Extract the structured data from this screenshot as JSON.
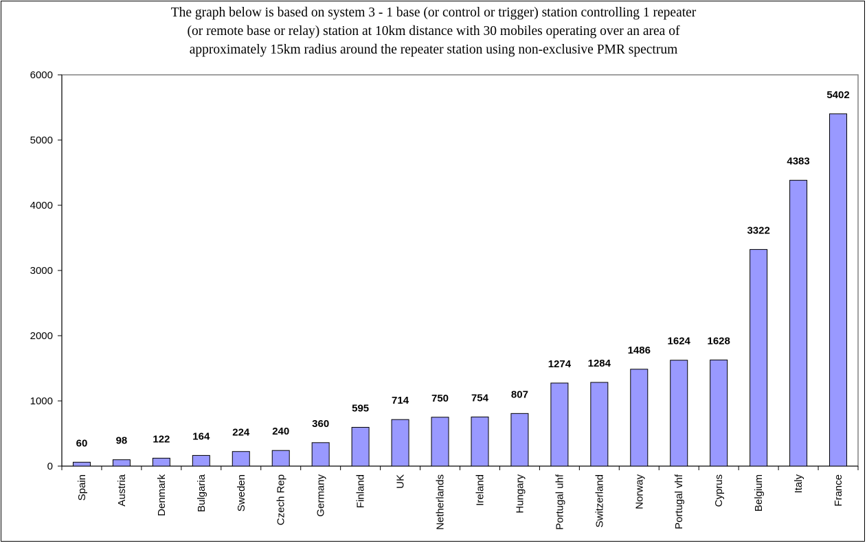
{
  "chart_data": {
    "type": "bar",
    "title_lines": [
      "The graph below is based on system 3 - 1 base (or control or trigger) station controlling 1 repeater",
      "(or remote base or relay) station at 10km distance with 30 mobiles operating over an area of",
      "approximately 15km radius around the repeater station using non-exclusive PMR spectrum"
    ],
    "categories": [
      "Spain",
      "Austria",
      "Denmark",
      "Bulgaria",
      "Sweden",
      "Czech Rep",
      "Germany",
      "Finland",
      "UK",
      "Netherlands",
      "Ireland",
      "Hungary",
      "Portugal uhf",
      "Switzerland",
      "Norway",
      "Portugal vhf",
      "Cyprus",
      "Belgium",
      "Italy",
      "France"
    ],
    "values": [
      60,
      98,
      122,
      164,
      224,
      240,
      360,
      595,
      714,
      750,
      754,
      807,
      1274,
      1284,
      1486,
      1624,
      1628,
      3322,
      4383,
      5402
    ],
    "ylim": [
      0,
      6000
    ],
    "yticks": [
      0,
      1000,
      2000,
      3000,
      4000,
      5000,
      6000
    ],
    "grid": false,
    "legend": "none",
    "bar_color": "#9999ff",
    "bar_stroke": "#000000",
    "plot_border": "#808080"
  }
}
